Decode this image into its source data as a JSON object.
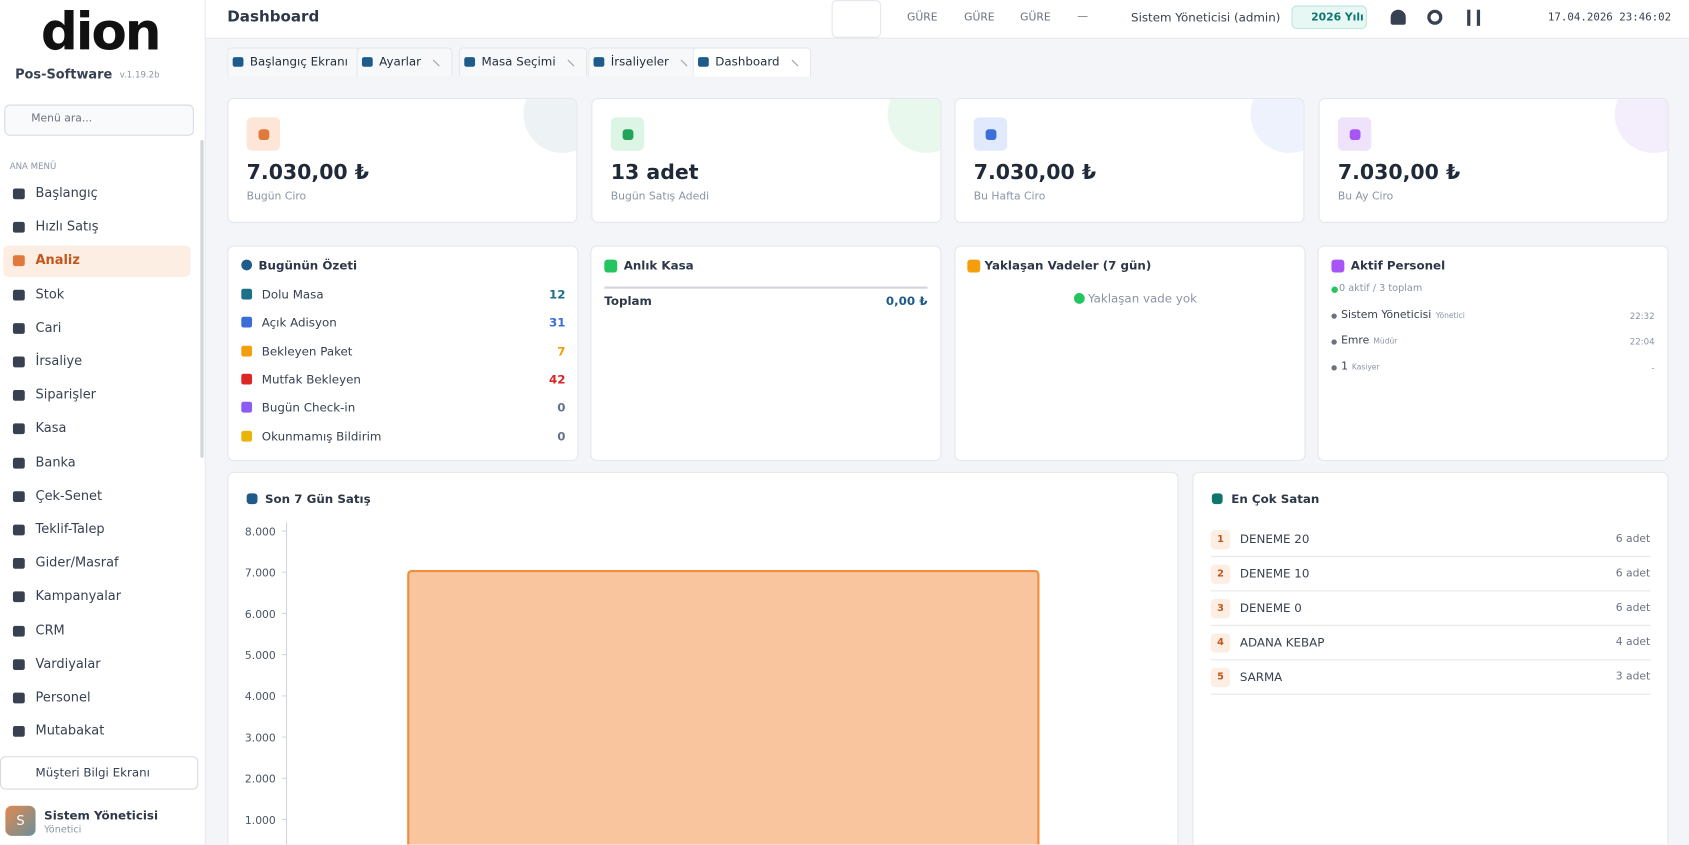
{
  "header": {
    "title": "Dashboard",
    "branches": [
      "GÜRE",
      "GÜRE",
      "GÜRE"
    ],
    "branch_extra": "—",
    "user": "Sistem Yöneticisi (admin)",
    "year": "2026 Yılı",
    "datetime": "17.04.2026 23:46:02"
  },
  "sidebar": {
    "logo": "dion",
    "brand": "Pos-Software",
    "version": "v.1.19.2b",
    "search_placeholder": "Menü ara...",
    "section": "ANA MENÜ",
    "menu": [
      "Başlangıç",
      "Hızlı Satış",
      "Analiz",
      "Stok",
      "Cari",
      "İrsaliye",
      "Siparişler",
      "Kasa",
      "Banka",
      "Çek-Senet",
      "Teklif-Talep",
      "Gider/Masraf",
      "Kampanyalar",
      "CRM",
      "Vardiyalar",
      "Personel",
      "Mutabakat"
    ],
    "customer_screen": "Müşteri Bilgi Ekranı",
    "user": {
      "initial": "S",
      "name": "Sistem Yöneticisi",
      "role": "Yönetici"
    }
  },
  "tabs": [
    "Başlangıç Ekranı",
    "Ayarlar",
    "Masa Seçimi",
    "İrsaliyeler",
    "Dashboard"
  ],
  "stats": [
    {
      "value": "7.030,00 ₺",
      "label": "Bugün Ciro"
    },
    {
      "value": "13 adet",
      "label": "Bugün Satış Adedi"
    },
    {
      "value": "7.030,00 ₺",
      "label": "Bu Hafta Ciro"
    },
    {
      "value": "7.030,00 ₺",
      "label": "Bu Ay Ciro"
    }
  ],
  "summary": {
    "title": "Bugünün Özeti",
    "items": [
      {
        "label": "Dolu Masa",
        "value": 12
      },
      {
        "label": "Açık Adisyon",
        "value": 31
      },
      {
        "label": "Bekleyen Paket",
        "value": 7
      },
      {
        "label": "Mutfak Bekleyen",
        "value": 42
      },
      {
        "label": "Bugün Check-in",
        "value": 0
      },
      {
        "label": "Okunmamış Bildirim",
        "value": 0
      }
    ]
  },
  "cash": {
    "title": "Anlık Kasa",
    "label": "Toplam",
    "value": "0,00 ₺"
  },
  "due": {
    "title": "Yaklaşan Vadeler (7 gün)",
    "empty": "Yaklaşan vade yok"
  },
  "staff": {
    "title": "Aktif Personel",
    "summary": "0 aktif / 3 toplam",
    "people": [
      {
        "name": "Sistem Yöneticisi",
        "role": "Yönetici",
        "time": "22:32"
      },
      {
        "name": "Emre",
        "role": "Müdür",
        "time": "22:04"
      },
      {
        "name": "1",
        "role": "Kasiyer",
        "time": "-"
      }
    ]
  },
  "sales_chart": {
    "type": "bar",
    "title": "Son 7 Gün Satış",
    "values": [
      7030
    ],
    "color": "#f9c59e",
    "border": "#f28c3f",
    "ylim": [
      0,
      8000
    ],
    "yticks": [
      {
        "value": 1000,
        "label": "1.000"
      },
      {
        "value": 2000,
        "label": "2.000"
      },
      {
        "value": 3000,
        "label": "3.000"
      },
      {
        "value": 4000,
        "label": "4.000"
      },
      {
        "value": 5000,
        "label": "5.000"
      },
      {
        "value": 6000,
        "label": "6.000"
      },
      {
        "value": 7000,
        "label": "7.000"
      },
      {
        "value": 8000,
        "label": "8.000"
      }
    ]
  },
  "top_sellers": {
    "title": "En Çok Satan",
    "items": [
      {
        "rank": 1,
        "name": "DENEME 20",
        "qty": "6 adet"
      },
      {
        "rank": 2,
        "name": "DENEME 10",
        "qty": "6 adet"
      },
      {
        "rank": 3,
        "name": "DENEME 0",
        "qty": "6 adet"
      },
      {
        "rank": 4,
        "name": "ADANA KEBAP",
        "qty": "4 adet"
      },
      {
        "rank": 5,
        "name": "SARMA",
        "qty": "3 adet"
      }
    ]
  }
}
